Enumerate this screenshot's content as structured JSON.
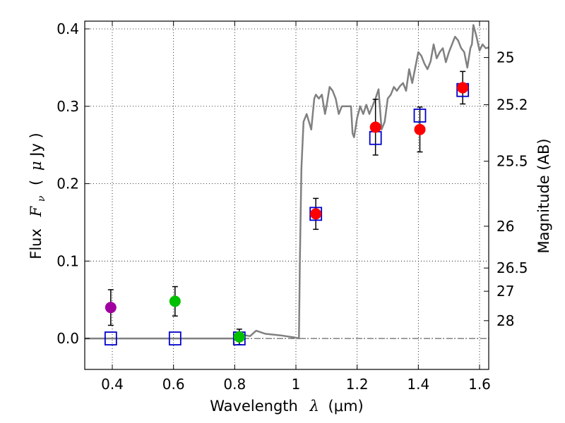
{
  "chart_data": {
    "type": "scatter",
    "xlabel": "Wavelength",
    "xlabel_symbol": "λ",
    "xlabel_unit": "(μm)",
    "ylabel_prefix": "Flux",
    "ylabel_symbol": "F",
    "ylabel_subscript": "ν",
    "ylabel_unit_open": "(",
    "ylabel_unit_mu": "μ",
    "ylabel_unit_rest": "Jy )",
    "y2label": "Magnitude (AB)",
    "xlim": [
      0.31,
      1.63
    ],
    "ylim": [
      -0.04,
      0.41
    ],
    "grid": true,
    "x_ticks": [
      0.4,
      0.6,
      0.8,
      1.0,
      1.2,
      1.4,
      1.6
    ],
    "x_tick_labels": [
      "0.4",
      "0.6",
      "0.8",
      "1",
      "1.2",
      "1.4",
      "1.6"
    ],
    "y_ticks": [
      0.0,
      0.1,
      0.2,
      0.3,
      0.4
    ],
    "y_tick_labels": [
      "0.0",
      "0.1",
      "0.2",
      "0.3",
      "0.4"
    ],
    "mag_ticks": [
      {
        "label": "25",
        "flux": 0.363
      },
      {
        "label": "25.2",
        "flux": 0.302
      },
      {
        "label": "25.5",
        "flux": 0.229
      },
      {
        "label": "26",
        "flux": 0.145
      },
      {
        "label": "26.5",
        "flux": 0.091
      },
      {
        "label": "27",
        "flux": 0.061
      },
      {
        "label": "28",
        "flux": 0.023
      }
    ],
    "model_spectrum": {
      "name": "model",
      "color": "#808080",
      "x": [
        0.31,
        0.82,
        0.835,
        0.85,
        0.87,
        0.9,
        0.95,
        1.0,
        1.01,
        1.013,
        1.018,
        1.025,
        1.035,
        1.05,
        1.06,
        1.065,
        1.075,
        1.085,
        1.095,
        1.1,
        1.11,
        1.12,
        1.13,
        1.14,
        1.15,
        1.16,
        1.17,
        1.18,
        1.185,
        1.19,
        1.2,
        1.21,
        1.22,
        1.23,
        1.24,
        1.25,
        1.26,
        1.27,
        1.28,
        1.29,
        1.3,
        1.31,
        1.32,
        1.33,
        1.34,
        1.35,
        1.36,
        1.37,
        1.38,
        1.39,
        1.4,
        1.41,
        1.42,
        1.43,
        1.44,
        1.45,
        1.46,
        1.47,
        1.48,
        1.49,
        1.5,
        1.51,
        1.52,
        1.53,
        1.54,
        1.55,
        1.56,
        1.57,
        1.575,
        1.58,
        1.59,
        1.6,
        1.61,
        1.62,
        1.63
      ],
      "y": [
        0.0,
        0.0,
        0.004,
        0.003,
        0.01,
        0.006,
        0.004,
        0.001,
        0.0,
        0.1,
        0.22,
        0.28,
        0.29,
        0.27,
        0.31,
        0.315,
        0.31,
        0.315,
        0.29,
        0.3,
        0.325,
        0.32,
        0.31,
        0.29,
        0.3,
        0.3,
        0.3,
        0.3,
        0.265,
        0.26,
        0.285,
        0.3,
        0.29,
        0.302,
        0.29,
        0.3,
        0.31,
        0.322,
        0.27,
        0.28,
        0.31,
        0.315,
        0.325,
        0.32,
        0.326,
        0.33,
        0.32,
        0.348,
        0.33,
        0.35,
        0.37,
        0.365,
        0.355,
        0.348,
        0.358,
        0.38,
        0.362,
        0.37,
        0.375,
        0.357,
        0.37,
        0.38,
        0.39,
        0.385,
        0.375,
        0.37,
        0.35,
        0.375,
        0.38,
        0.405,
        0.39,
        0.372,
        0.38,
        0.375,
        0.376
      ]
    },
    "observed": [
      {
        "x": 0.395,
        "y": 0.04,
        "err": 0.023,
        "color": "#a000a0"
      },
      {
        "x": 0.605,
        "y": 0.048,
        "err": 0.019,
        "color": "#00c000"
      },
      {
        "x": 0.815,
        "y": 0.002,
        "err": 0.01,
        "color": "#00c000"
      },
      {
        "x": 1.065,
        "y": 0.161,
        "err": 0.02,
        "color": "#ff0000"
      },
      {
        "x": 1.26,
        "y": 0.273,
        "err": 0.036,
        "color": "#ff0000"
      },
      {
        "x": 1.405,
        "y": 0.27,
        "err": 0.029,
        "color": "#ff0000"
      },
      {
        "x": 1.545,
        "y": 0.324,
        "err": 0.021,
        "color": "#ff0000"
      }
    ],
    "model_bandpass": {
      "color": "#0000cc",
      "x": [
        0.395,
        0.605,
        0.815,
        1.065,
        1.26,
        1.405,
        1.545
      ],
      "y": [
        0.0,
        0.0,
        0.0,
        0.161,
        0.259,
        0.288,
        0.321
      ]
    }
  }
}
